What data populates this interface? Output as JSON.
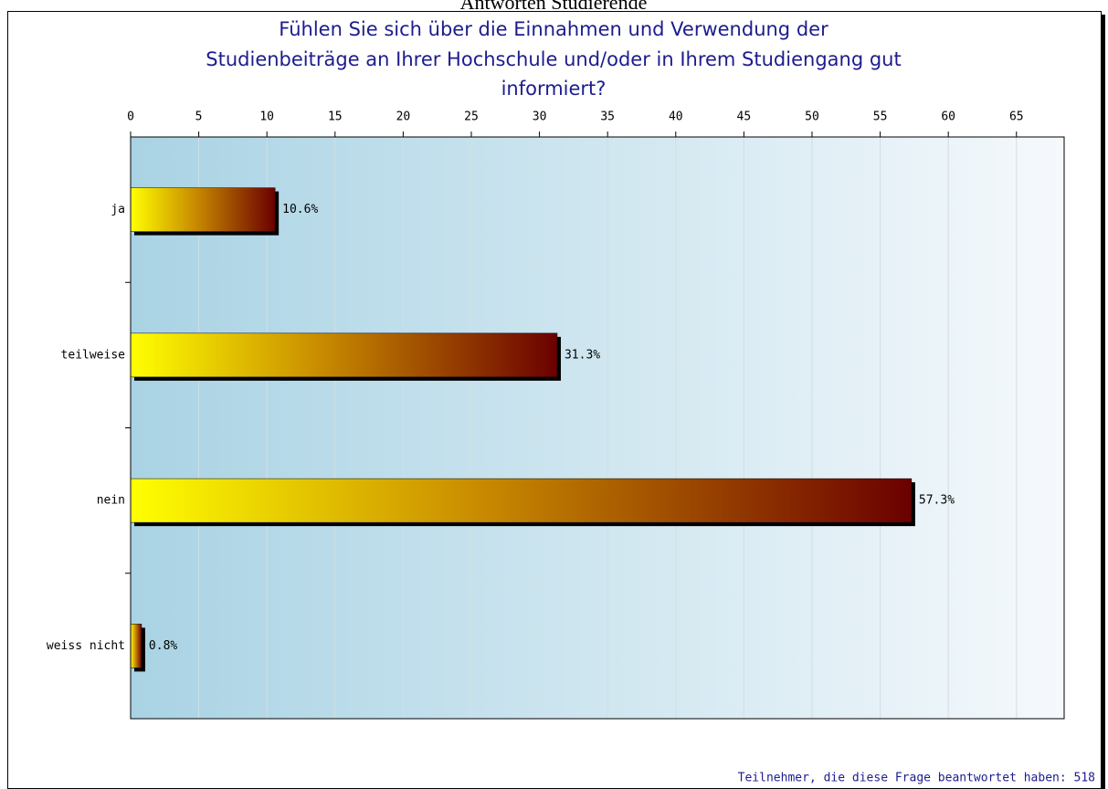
{
  "chart_data": {
    "type": "barh",
    "header": "Antworten Studierende",
    "title": [
      "Fühlen Sie sich über die Einnahmen und Verwendung der",
      "Studienbeiträge an Ihrer Hochschule und/oder in Ihrem Studiengang gut",
      "informiert?"
    ],
    "categories": [
      "ja",
      "teilweise",
      "nein",
      "weiss nicht"
    ],
    "values": [
      10.6,
      31.3,
      57.3,
      0.8
    ],
    "value_labels": [
      "10.6%",
      "31.3%",
      "57.3%",
      "0.8%"
    ],
    "colors": [
      "#ffff00",
      "#6b0000"
    ],
    "xlim": [
      0,
      68.5
    ],
    "xticks": [
      0,
      5,
      10,
      15,
      20,
      25,
      30,
      35,
      40,
      45,
      50,
      55,
      60,
      65
    ],
    "grid": true,
    "footnote": "Teilnehmer, die diese Frage beantwortet haben: 518"
  }
}
